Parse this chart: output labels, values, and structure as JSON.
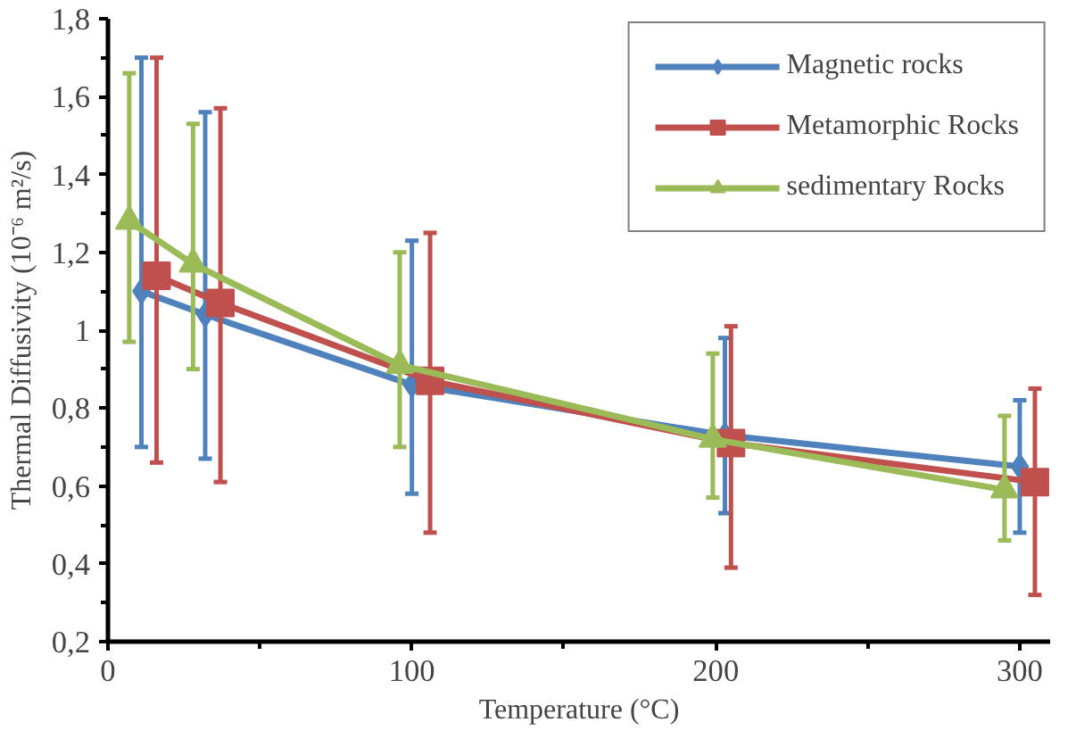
{
  "chart_data": {
    "type": "line",
    "xlabel": "Temperature (°C)",
    "ylabel": "Thermal Diffusivity (10⁻⁶ m²/s)",
    "xlim": [
      0,
      310
    ],
    "xticks": [
      0,
      100,
      200,
      300
    ],
    "ylim": [
      0.2,
      1.8
    ],
    "yticks": [
      {
        "value": 0.2,
        "label": "0,2"
      },
      {
        "value": 0.4,
        "label": "0,4"
      },
      {
        "value": 0.6,
        "label": "0,6"
      },
      {
        "value": 0.8,
        "label": "0,8"
      },
      1,
      {
        "value": 1.2,
        "label": "1,2"
      },
      {
        "value": 1.4,
        "label": "1,4"
      },
      {
        "value": 1.6,
        "label": "1,6"
      },
      {
        "value": 1.8,
        "label": "1,8"
      }
    ],
    "grid": false,
    "legend": "top right",
    "line_style": "solid",
    "series": [
      {
        "name": "Magnetic rocks",
        "color": "#4f81bd",
        "marker": "diamond",
        "x": [
          11,
          32,
          100,
          203,
          300
        ],
        "values": [
          1.1,
          1.04,
          0.86,
          0.73,
          0.65
        ],
        "errors": [
          [
            0.7,
            1.7
          ],
          [
            0.67,
            1.56
          ],
          [
            0.58,
            1.23
          ],
          [
            0.53,
            0.98
          ],
          [
            0.48,
            0.82
          ]
        ]
      },
      {
        "name": "Metamorphic Rocks",
        "color": "#c0504d",
        "marker": "square",
        "x": [
          16,
          37,
          106,
          205,
          305
        ],
        "values": [
          1.14,
          1.07,
          0.87,
          0.71,
          0.61
        ],
        "errors": [
          [
            0.66,
            1.7
          ],
          [
            0.61,
            1.57
          ],
          [
            0.48,
            1.25
          ],
          [
            0.39,
            1.01
          ],
          [
            0.32,
            0.85
          ]
        ]
      },
      {
        "name": "sedimentary Rocks",
        "color": "#9bbb59",
        "marker": "triangle",
        "x": [
          7,
          28,
          96,
          199,
          295
        ],
        "values": [
          1.28,
          1.17,
          0.91,
          0.72,
          0.59
        ],
        "errors": [
          [
            0.97,
            1.66
          ],
          [
            0.9,
            1.53
          ],
          [
            0.7,
            1.2
          ],
          [
            0.57,
            0.94
          ],
          [
            0.46,
            0.78
          ]
        ]
      }
    ]
  }
}
